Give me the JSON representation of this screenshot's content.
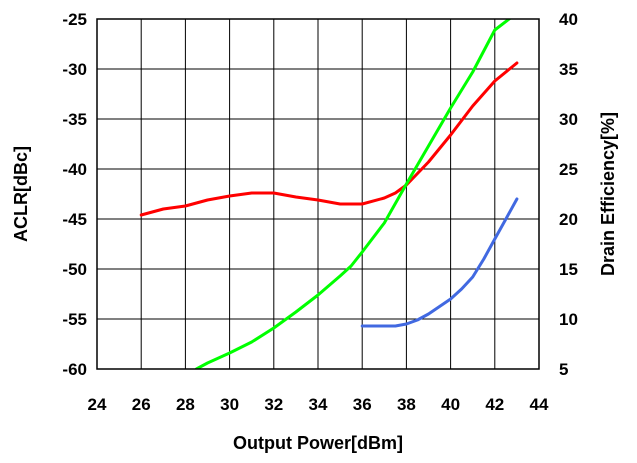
{
  "chart_data": {
    "type": "line",
    "title": "",
    "xlabel": "Output Power[dBm]",
    "ylabel_left": "ACLR[dBc]",
    "ylabel_right": "Drain Efficiency[%]",
    "xlim": [
      24,
      44
    ],
    "ylim_left": [
      -60,
      -25
    ],
    "ylim_right": [
      5,
      40
    ],
    "xticks": [
      24,
      26,
      28,
      30,
      32,
      34,
      36,
      38,
      40,
      42,
      44
    ],
    "yticks_left": [
      -60,
      -55,
      -50,
      -45,
      -40,
      -35,
      -30,
      -25
    ],
    "yticks_right": [
      5,
      10,
      15,
      20,
      25,
      30,
      35,
      40
    ],
    "grid": true,
    "legend": "none",
    "series": [
      {
        "axis": "left",
        "color": "#ff0000",
        "x": [
          26,
          27,
          28,
          29,
          30,
          31,
          32,
          33,
          34,
          35,
          36,
          37,
          37.5,
          38,
          39,
          40,
          41,
          42,
          43
        ],
        "y": [
          -44.6,
          -44.0,
          -43.7,
          -43.1,
          -42.7,
          -42.4,
          -42.4,
          -42.8,
          -43.1,
          -43.5,
          -43.5,
          -42.9,
          -42.4,
          -41.6,
          -39.3,
          -36.6,
          -33.7,
          -31.2,
          -29.4
        ]
      },
      {
        "axis": "right",
        "color": "#00ff00",
        "x": [
          28.5,
          29,
          30,
          31,
          32,
          33,
          34,
          35,
          35.5,
          36,
          37,
          38,
          39,
          40,
          41,
          42,
          43
        ],
        "y": [
          5.0,
          5.6,
          6.6,
          7.7,
          9.1,
          10.7,
          12.4,
          14.3,
          15.3,
          16.7,
          19.6,
          23.5,
          27.3,
          31.1,
          34.7,
          38.9,
          40.6
        ]
      },
      {
        "axis": "right",
        "color": "#4169e1",
        "x": [
          36,
          37,
          37.5,
          38,
          38.5,
          39,
          40,
          40.5,
          41,
          41.5,
          42,
          42.5,
          43
        ],
        "y": [
          9.3,
          9.3,
          9.3,
          9.5,
          9.9,
          10.5,
          12.0,
          13.0,
          14.2,
          16.0,
          18.0,
          20.0,
          22.0
        ]
      }
    ]
  }
}
